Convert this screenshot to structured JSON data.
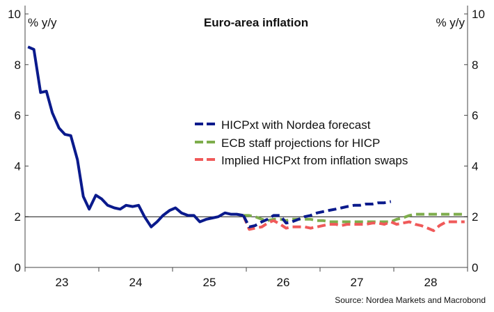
{
  "chart_data": {
    "type": "line",
    "title": "Euro-area inflation",
    "ylabel_left": "% y/y",
    "ylabel_right": "% y/y",
    "ylim": [
      0,
      10
    ],
    "yticks": [
      0,
      2,
      4,
      6,
      8,
      10
    ],
    "xlim": [
      2022.5,
      2028.5
    ],
    "xticks": [
      {
        "label": "23",
        "value": 2023
      },
      {
        "label": "24",
        "value": 2024
      },
      {
        "label": "25",
        "value": 2025
      },
      {
        "label": "26",
        "value": 2026
      },
      {
        "label": "27",
        "value": 2027
      },
      {
        "label": "28",
        "value": 2028
      }
    ],
    "year_boundaries": [
      2022.5,
      2023.5,
      2024.5,
      2025.5,
      2026.5,
      2027.5,
      2028.5
    ],
    "reference_line": 2,
    "legend_position": "center",
    "source": "Source: Nordea Markets and Macrobond",
    "series": [
      {
        "name": "HICPxt with Nordea forecast",
        "color": "#0a1a8c",
        "style": "solid",
        "x": [
          2022.54,
          2022.62,
          2022.71,
          2022.79,
          2022.87,
          2022.96,
          2023.04,
          2023.12,
          2023.21,
          2023.29,
          2023.37,
          2023.46,
          2023.54,
          2023.62,
          2023.71,
          2023.79,
          2023.87,
          2023.96,
          2024.04,
          2024.12,
          2024.21,
          2024.29,
          2024.37,
          2024.46,
          2024.54,
          2024.62,
          2024.71,
          2024.79,
          2024.87,
          2024.96,
          2025.04,
          2025.12,
          2025.21,
          2025.29,
          2025.37,
          2025.46
        ],
        "values": [
          8.7,
          8.6,
          6.9,
          6.95,
          6.1,
          5.5,
          5.25,
          5.2,
          4.25,
          2.8,
          2.3,
          2.85,
          2.7,
          2.45,
          2.35,
          2.3,
          2.45,
          2.4,
          2.45,
          2.0,
          1.6,
          1.8,
          2.05,
          2.25,
          2.35,
          2.15,
          2.05,
          2.05,
          1.8,
          1.9,
          1.95,
          2.0,
          2.15,
          2.1,
          2.1,
          2.05
        ]
      },
      {
        "name": "HICPxt with Nordea forecast (forecast)",
        "color": "#0a1a8c",
        "style": "dashed",
        "x": [
          2025.46,
          2025.54,
          2025.62,
          2025.71,
          2025.79,
          2025.87,
          2025.96,
          2026.04,
          2026.12,
          2026.21,
          2026.29,
          2026.37,
          2026.46,
          2026.54,
          2026.62,
          2026.71,
          2026.79,
          2026.87,
          2026.96,
          2027.04,
          2027.12,
          2027.21,
          2027.29,
          2027.37,
          2027.46
        ],
        "values": [
          2.05,
          1.6,
          1.65,
          1.8,
          1.9,
          2.05,
          2.05,
          1.75,
          1.8,
          1.9,
          2.0,
          2.05,
          2.15,
          2.2,
          2.25,
          2.3,
          2.35,
          2.4,
          2.45,
          2.45,
          2.5,
          2.5,
          2.55,
          2.55,
          2.6
        ]
      },
      {
        "name": "ECB staff projections for HICP",
        "color": "#7ead4c",
        "style": "dashed",
        "x": [
          2025.46,
          2025.54,
          2025.62,
          2025.71,
          2025.79,
          2025.87,
          2025.96,
          2026.04,
          2026.12,
          2026.21,
          2026.29,
          2026.37,
          2026.46,
          2026.54,
          2026.62,
          2026.71,
          2026.79,
          2026.87,
          2026.96,
          2027.04,
          2027.12,
          2027.21,
          2027.29,
          2027.37,
          2027.46,
          2027.54,
          2027.62,
          2027.71,
          2027.79,
          2027.87,
          2027.96,
          2028.04,
          2028.12,
          2028.21,
          2028.29,
          2028.37,
          2028.46
        ],
        "values": [
          2.05,
          2.05,
          2.0,
          1.9,
          1.85,
          1.9,
          1.9,
          1.85,
          1.9,
          1.9,
          1.9,
          1.9,
          1.85,
          1.85,
          1.8,
          1.8,
          1.8,
          1.8,
          1.8,
          1.8,
          1.8,
          1.8,
          1.8,
          1.8,
          1.8,
          1.9,
          1.95,
          2.05,
          2.1,
          2.1,
          2.1,
          2.1,
          2.1,
          2.1,
          2.1,
          2.1,
          2.1
        ]
      },
      {
        "name": "Implied HICPxt from inflation swaps",
        "color": "#f05a5a",
        "style": "dashed",
        "x": [
          2025.46,
          2025.54,
          2025.62,
          2025.71,
          2025.79,
          2025.87,
          2025.96,
          2026.04,
          2026.12,
          2026.21,
          2026.29,
          2026.37,
          2026.46,
          2026.54,
          2026.62,
          2026.71,
          2026.79,
          2026.87,
          2026.96,
          2027.04,
          2027.12,
          2027.21,
          2027.29,
          2027.37,
          2027.46,
          2027.54,
          2027.62,
          2027.71,
          2027.79,
          2027.87,
          2027.96,
          2028.04,
          2028.12,
          2028.21,
          2028.29,
          2028.37,
          2028.46
        ],
        "values": [
          2.05,
          1.5,
          1.55,
          1.6,
          1.75,
          1.85,
          1.7,
          1.55,
          1.6,
          1.6,
          1.6,
          1.55,
          1.6,
          1.65,
          1.7,
          1.7,
          1.65,
          1.7,
          1.7,
          1.7,
          1.7,
          1.75,
          1.75,
          1.7,
          1.8,
          1.7,
          1.75,
          1.8,
          1.7,
          1.65,
          1.55,
          1.45,
          1.65,
          1.8,
          1.8,
          1.8,
          1.8
        ]
      }
    ]
  }
}
